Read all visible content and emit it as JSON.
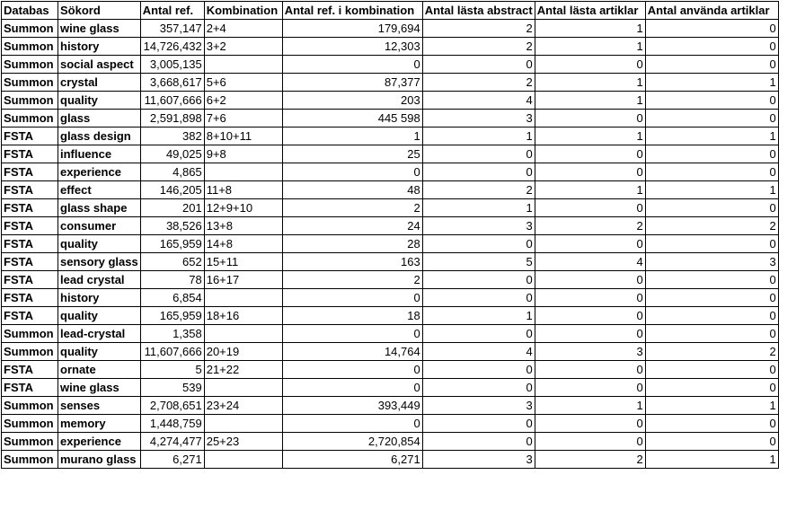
{
  "table": {
    "headers": [
      "Databas",
      "Sökord",
      "Antal ref.",
      "Kombination",
      "Antal ref. i kombination",
      "Antal lästa abstract",
      "Antal lästa artiklar",
      "Antal använda artiklar"
    ],
    "rows": [
      [
        "Summon",
        "wine glass",
        "357,147",
        "2+4",
        "179,694",
        "2",
        "1",
        "0"
      ],
      [
        "Summon",
        "history",
        "14,726,432",
        "3+2",
        "12,303",
        "2",
        "1",
        "0"
      ],
      [
        "Summon",
        "social aspect",
        "3,005,135",
        "",
        "0",
        "0",
        "0",
        "0"
      ],
      [
        "Summon",
        "crystal",
        "3,668,617",
        "5+6",
        "87,377",
        "2",
        "1",
        "1"
      ],
      [
        "Summon",
        "quality",
        "11,607,666",
        "6+2",
        "203",
        "4",
        "1",
        "0"
      ],
      [
        "Summon",
        "glass",
        "2,591,898",
        "7+6",
        "445 598",
        "3",
        "0",
        "0"
      ],
      [
        "FSTA",
        "glass design",
        "382",
        "8+10+11",
        "1",
        "1",
        "1",
        "1"
      ],
      [
        "FSTA",
        "influence",
        "49,025",
        "9+8",
        "25",
        "0",
        "0",
        "0"
      ],
      [
        "FSTA",
        "experience",
        "4,865",
        "",
        "0",
        "0",
        "0",
        "0"
      ],
      [
        "FSTA",
        "effect",
        "146,205",
        "11+8",
        "48",
        "2",
        "1",
        "1"
      ],
      [
        "FSTA",
        "glass shape",
        "201",
        "12+9+10",
        "2",
        "1",
        "0",
        "0"
      ],
      [
        "FSTA",
        "consumer",
        "38,526",
        "13+8",
        "24",
        "3",
        "2",
        "2"
      ],
      [
        "FSTA",
        "quality",
        "165,959",
        "14+8",
        "28",
        "0",
        "0",
        "0"
      ],
      [
        "FSTA",
        "sensory glass",
        "652",
        "15+11",
        "163",
        "5",
        "4",
        "3"
      ],
      [
        "FSTA",
        "lead crystal",
        "78",
        "16+17",
        "2",
        "0",
        "0",
        "0"
      ],
      [
        "FSTA",
        "history",
        "6,854",
        "",
        "0",
        "0",
        "0",
        "0"
      ],
      [
        "FSTA",
        "quality",
        "165,959",
        "18+16",
        "18",
        "1",
        "0",
        "0"
      ],
      [
        "Summon",
        "lead-crystal",
        "1,358",
        "",
        "0",
        "0",
        "0",
        "0"
      ],
      [
        "Summon",
        "quality",
        "11,607,666",
        "20+19",
        "14,764",
        "4",
        "3",
        "2"
      ],
      [
        "FSTA",
        "ornate",
        "5",
        "21+22",
        "0",
        "0",
        "0",
        "0"
      ],
      [
        "FSTA",
        "wine glass",
        "539",
        "",
        "0",
        "0",
        "0",
        "0"
      ],
      [
        "Summon",
        "senses",
        "2,708,651",
        "23+24",
        "393,449",
        "3",
        "1",
        "1"
      ],
      [
        "Summon",
        "memory",
        "1,448,759",
        "",
        "0",
        "0",
        "0",
        "0"
      ],
      [
        "Summon",
        "experience",
        "4,274,477",
        "25+23",
        "2,720,854",
        "0",
        "0",
        "0"
      ],
      [
        "Summon",
        "murano glass",
        "6,271",
        "",
        "6,271",
        "3",
        "2",
        "1"
      ]
    ]
  }
}
